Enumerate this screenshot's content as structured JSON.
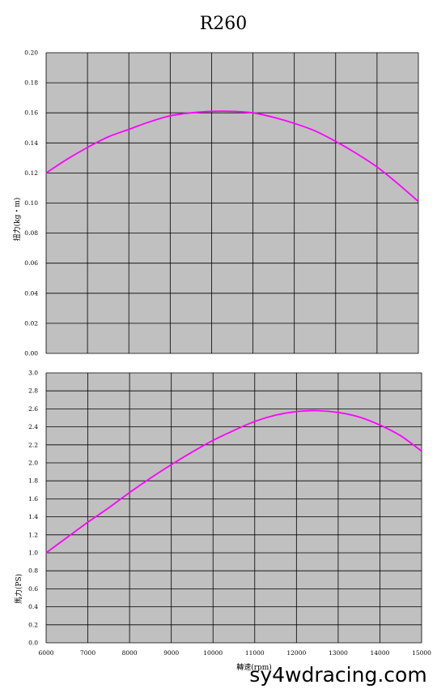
{
  "page": {
    "title": "R260",
    "watermark": "sy4wdracing.com"
  },
  "colors": {
    "plot_background": "#c0c0c0",
    "grid": "#000000",
    "curve": "#ff00ff"
  },
  "chart_data": [
    {
      "type": "line",
      "title": "R260",
      "xlabel": "",
      "ylabel": "扭力(kg・m)",
      "xlim": [
        6000,
        15000
      ],
      "ylim": [
        0,
        0.2
      ],
      "x_ticks": [
        6000,
        7000,
        8000,
        9000,
        10000,
        11000,
        12000,
        13000,
        14000,
        15000
      ],
      "x_tick_labels": [],
      "y_ticks": [
        "0.00",
        "0.02",
        "0.04",
        "0.06",
        "0.08",
        "0.10",
        "0.12",
        "0.14",
        "0.16",
        "0.18",
        "0.20"
      ],
      "grid": true,
      "series": [
        {
          "x": [
            6000,
            6500,
            7000,
            7500,
            8000,
            8500,
            9000,
            9500,
            10000,
            10500,
            11000,
            11500,
            12000,
            12500,
            13000,
            13500,
            14000,
            14500,
            15000
          ],
          "y": [
            0.12,
            0.129,
            0.137,
            0.144,
            0.149,
            0.154,
            0.158,
            0.16,
            0.161,
            0.161,
            0.16,
            0.157,
            0.153,
            0.148,
            0.141,
            0.133,
            0.124,
            0.113,
            0.101
          ]
        }
      ]
    },
    {
      "type": "line",
      "xlabel": "轉速(rpm)",
      "ylabel": "馬力(PS)",
      "xlim": [
        6000,
        15000
      ],
      "ylim": [
        0,
        3
      ],
      "x_ticks": [
        "6000",
        "7000",
        "8000",
        "9000",
        "10000",
        "11000",
        "12000",
        "13000",
        "14000",
        "15000"
      ],
      "y_ticks": [
        "0.0",
        "0.2",
        "0.4",
        "0.6",
        "0.8",
        "1.0",
        "1.2",
        "1.4",
        "1.6",
        "1.8",
        "2.0",
        "2.2",
        "2.4",
        "2.6",
        "2.8",
        "3.0"
      ],
      "grid": true,
      "series": [
        {
          "x": [
            6000,
            6500,
            7000,
            7500,
            8000,
            8500,
            9000,
            9500,
            10000,
            10500,
            11000,
            11500,
            12000,
            12500,
            13000,
            13500,
            14000,
            14500,
            15000
          ],
          "y": [
            1.0,
            1.17,
            1.34,
            1.5,
            1.67,
            1.83,
            1.98,
            2.12,
            2.25,
            2.36,
            2.46,
            2.53,
            2.57,
            2.58,
            2.56,
            2.51,
            2.42,
            2.3,
            2.13
          ]
        }
      ]
    }
  ]
}
